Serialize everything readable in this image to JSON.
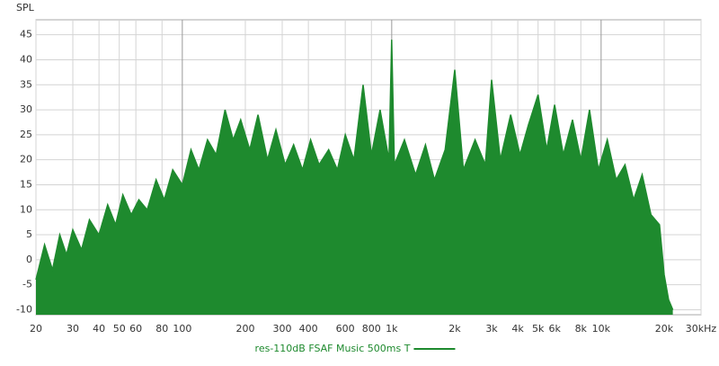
{
  "chart_data": {
    "type": "area",
    "y_label": "SPL",
    "x": [
      20,
      22,
      24,
      26,
      28,
      30,
      33,
      36,
      40,
      44,
      48,
      52,
      57,
      62,
      68,
      75,
      82,
      90,
      100,
      110,
      120,
      132,
      145,
      160,
      175,
      190,
      210,
      230,
      255,
      280,
      310,
      340,
      375,
      410,
      450,
      500,
      550,
      600,
      660,
      730,
      800,
      880,
      970,
      1000,
      1030,
      1150,
      1300,
      1450,
      1600,
      1800,
      2000,
      2200,
      2500,
      2800,
      3000,
      3300,
      3700,
      4100,
      4500,
      5000,
      5500,
      6000,
      6600,
      7300,
      8000,
      8800,
      9700,
      10700,
      11800,
      13000,
      14300,
      15700,
      17300,
      19000,
      20000,
      21000,
      22000
    ],
    "series": [
      {
        "name": "res-110dB FSAF Music 500ms T",
        "color": "#1e8a2e",
        "values": [
          -4,
          3,
          -2,
          5,
          1,
          6,
          2,
          8,
          5,
          11,
          7,
          13,
          9,
          12,
          10,
          16,
          12,
          18,
          15,
          22,
          18,
          24,
          21,
          30,
          24,
          28,
          22,
          29,
          20,
          26,
          19,
          23,
          18,
          24,
          19,
          22,
          18,
          25,
          20,
          35,
          21,
          30,
          20,
          44,
          19,
          24,
          17,
          23,
          16,
          22,
          38,
          18,
          24,
          19,
          36,
          20,
          29,
          21,
          27,
          33,
          22,
          31,
          21,
          28,
          20,
          30,
          18,
          24,
          16,
          19,
          12,
          17,
          9,
          7,
          -3,
          -8,
          -10
        ]
      }
    ],
    "xlim": [
      20,
      30000
    ],
    "log_x": true,
    "xticks": [
      20,
      30,
      40,
      50,
      60,
      80,
      100,
      200,
      300,
      400,
      600,
      800,
      {
        "value": 1000,
        "label": "1k"
      },
      {
        "value": 2000,
        "label": "2k"
      },
      {
        "value": 3000,
        "label": "3k"
      },
      {
        "value": 4000,
        "label": "4k"
      },
      {
        "value": 5000,
        "label": "5k"
      },
      {
        "value": 6000,
        "label": "6k"
      },
      {
        "value": 8000,
        "label": "8k"
      },
      {
        "value": 10000,
        "label": "10k"
      },
      {
        "value": 20000,
        "label": "20k"
      },
      {
        "value": 30000,
        "label": "30kHz"
      }
    ],
    "ylim": [
      -11,
      48
    ],
    "yticks": [
      -10,
      -5,
      0,
      5,
      10,
      15,
      20,
      25,
      30,
      35,
      40,
      45
    ],
    "grid": true
  }
}
